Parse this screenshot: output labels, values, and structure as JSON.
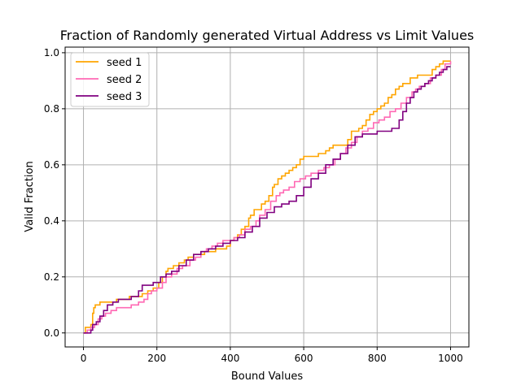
{
  "chart_data": {
    "type": "line",
    "title": "Fraction of Randomly generated Virtual Address vs Limit Values",
    "xlabel": "Bound Values",
    "ylabel": "Valid Fraction",
    "xlim": [
      -50,
      1050
    ],
    "ylim": [
      -0.05,
      1.02
    ],
    "xticks": [
      0,
      200,
      400,
      600,
      800,
      1000
    ],
    "xtick_labels": [
      "0",
      "200",
      "400",
      "600",
      "800",
      "1000"
    ],
    "yticks": [
      0.0,
      0.2,
      0.4,
      0.6,
      0.8,
      1.0
    ],
    "ytick_labels": [
      "0.0",
      "0.2",
      "0.4",
      "0.6",
      "0.8",
      "1.0"
    ],
    "grid": true,
    "legend_position": "upper-left",
    "series": [
      {
        "name": "seed 1",
        "color": "#ffa500",
        "x": [
          0,
          5,
          10,
          20,
          25,
          28,
          32,
          38,
          45,
          55,
          70,
          90,
          110,
          125,
          140,
          160,
          175,
          190,
          205,
          215,
          225,
          230,
          245,
          260,
          275,
          285,
          300,
          315,
          330,
          345,
          360,
          375,
          390,
          400,
          410,
          420,
          430,
          440,
          450,
          455,
          465,
          475,
          485,
          495,
          505,
          515,
          520,
          530,
          540,
          550,
          560,
          570,
          580,
          590,
          600,
          610,
          620,
          640,
          660,
          670,
          680,
          700,
          720,
          730,
          740,
          750,
          760,
          770,
          780,
          790,
          800,
          810,
          820,
          830,
          840,
          850,
          860,
          870,
          880,
          890,
          900,
          910,
          930,
          950,
          960,
          970,
          980,
          990,
          1000
        ],
        "y": [
          0.0,
          0.02,
          0.02,
          0.03,
          0.07,
          0.09,
          0.1,
          0.1,
          0.11,
          0.11,
          0.11,
          0.12,
          0.12,
          0.13,
          0.13,
          0.14,
          0.15,
          0.16,
          0.18,
          0.2,
          0.22,
          0.23,
          0.24,
          0.25,
          0.26,
          0.27,
          0.28,
          0.28,
          0.29,
          0.29,
          0.3,
          0.3,
          0.31,
          0.33,
          0.34,
          0.35,
          0.37,
          0.38,
          0.41,
          0.42,
          0.44,
          0.44,
          0.46,
          0.47,
          0.49,
          0.52,
          0.53,
          0.55,
          0.56,
          0.57,
          0.58,
          0.59,
          0.6,
          0.62,
          0.63,
          0.63,
          0.63,
          0.64,
          0.65,
          0.66,
          0.67,
          0.67,
          0.69,
          0.72,
          0.72,
          0.73,
          0.74,
          0.76,
          0.78,
          0.79,
          0.8,
          0.81,
          0.82,
          0.84,
          0.85,
          0.87,
          0.88,
          0.89,
          0.89,
          0.91,
          0.91,
          0.92,
          0.92,
          0.94,
          0.95,
          0.96,
          0.97,
          0.97,
          0.97
        ]
      },
      {
        "name": "seed 2",
        "color": "#ff69b4",
        "x": [
          0,
          10,
          20,
          30,
          40,
          50,
          60,
          75,
          90,
          110,
          130,
          150,
          165,
          175,
          185,
          200,
          215,
          225,
          240,
          255,
          270,
          290,
          305,
          320,
          335,
          350,
          365,
          380,
          395,
          410,
          425,
          440,
          455,
          470,
          480,
          495,
          510,
          525,
          535,
          545,
          560,
          575,
          590,
          605,
          620,
          640,
          655,
          670,
          685,
          700,
          715,
          730,
          745,
          760,
          775,
          790,
          805,
          820,
          835,
          850,
          865,
          880,
          895,
          905,
          915,
          930,
          945,
          960,
          975,
          985,
          1000
        ],
        "y": [
          0.0,
          0.01,
          0.02,
          0.03,
          0.05,
          0.06,
          0.07,
          0.08,
          0.09,
          0.09,
          0.1,
          0.11,
          0.12,
          0.14,
          0.15,
          0.16,
          0.18,
          0.2,
          0.21,
          0.23,
          0.24,
          0.26,
          0.27,
          0.29,
          0.3,
          0.31,
          0.32,
          0.33,
          0.33,
          0.34,
          0.35,
          0.37,
          0.38,
          0.4,
          0.42,
          0.44,
          0.47,
          0.49,
          0.5,
          0.51,
          0.52,
          0.54,
          0.55,
          0.56,
          0.57,
          0.58,
          0.59,
          0.6,
          0.62,
          0.64,
          0.66,
          0.68,
          0.7,
          0.72,
          0.73,
          0.75,
          0.76,
          0.77,
          0.79,
          0.8,
          0.82,
          0.84,
          0.86,
          0.87,
          0.88,
          0.89,
          0.91,
          0.92,
          0.94,
          0.96,
          0.97
        ]
      },
      {
        "name": "seed 3",
        "color": "#800080",
        "x": [
          0,
          10,
          20,
          25,
          35,
          45,
          55,
          65,
          80,
          95,
          110,
          130,
          150,
          160,
          175,
          190,
          210,
          225,
          240,
          260,
          280,
          300,
          320,
          340,
          360,
          380,
          400,
          420,
          440,
          460,
          480,
          500,
          520,
          540,
          560,
          580,
          600,
          620,
          640,
          660,
          680,
          700,
          720,
          740,
          760,
          780,
          800,
          820,
          840,
          860,
          870,
          880,
          890,
          900,
          910,
          920,
          930,
          940,
          950,
          960,
          970,
          980,
          990,
          1000
        ],
        "y": [
          0.0,
          0.0,
          0.01,
          0.03,
          0.04,
          0.06,
          0.08,
          0.1,
          0.11,
          0.12,
          0.12,
          0.13,
          0.15,
          0.17,
          0.17,
          0.18,
          0.2,
          0.21,
          0.22,
          0.24,
          0.26,
          0.28,
          0.29,
          0.3,
          0.31,
          0.32,
          0.33,
          0.34,
          0.36,
          0.38,
          0.41,
          0.43,
          0.45,
          0.46,
          0.47,
          0.49,
          0.52,
          0.55,
          0.57,
          0.6,
          0.62,
          0.64,
          0.67,
          0.7,
          0.71,
          0.71,
          0.72,
          0.72,
          0.73,
          0.76,
          0.79,
          0.82,
          0.84,
          0.86,
          0.87,
          0.88,
          0.89,
          0.9,
          0.91,
          0.92,
          0.93,
          0.94,
          0.95,
          0.95
        ]
      }
    ]
  }
}
